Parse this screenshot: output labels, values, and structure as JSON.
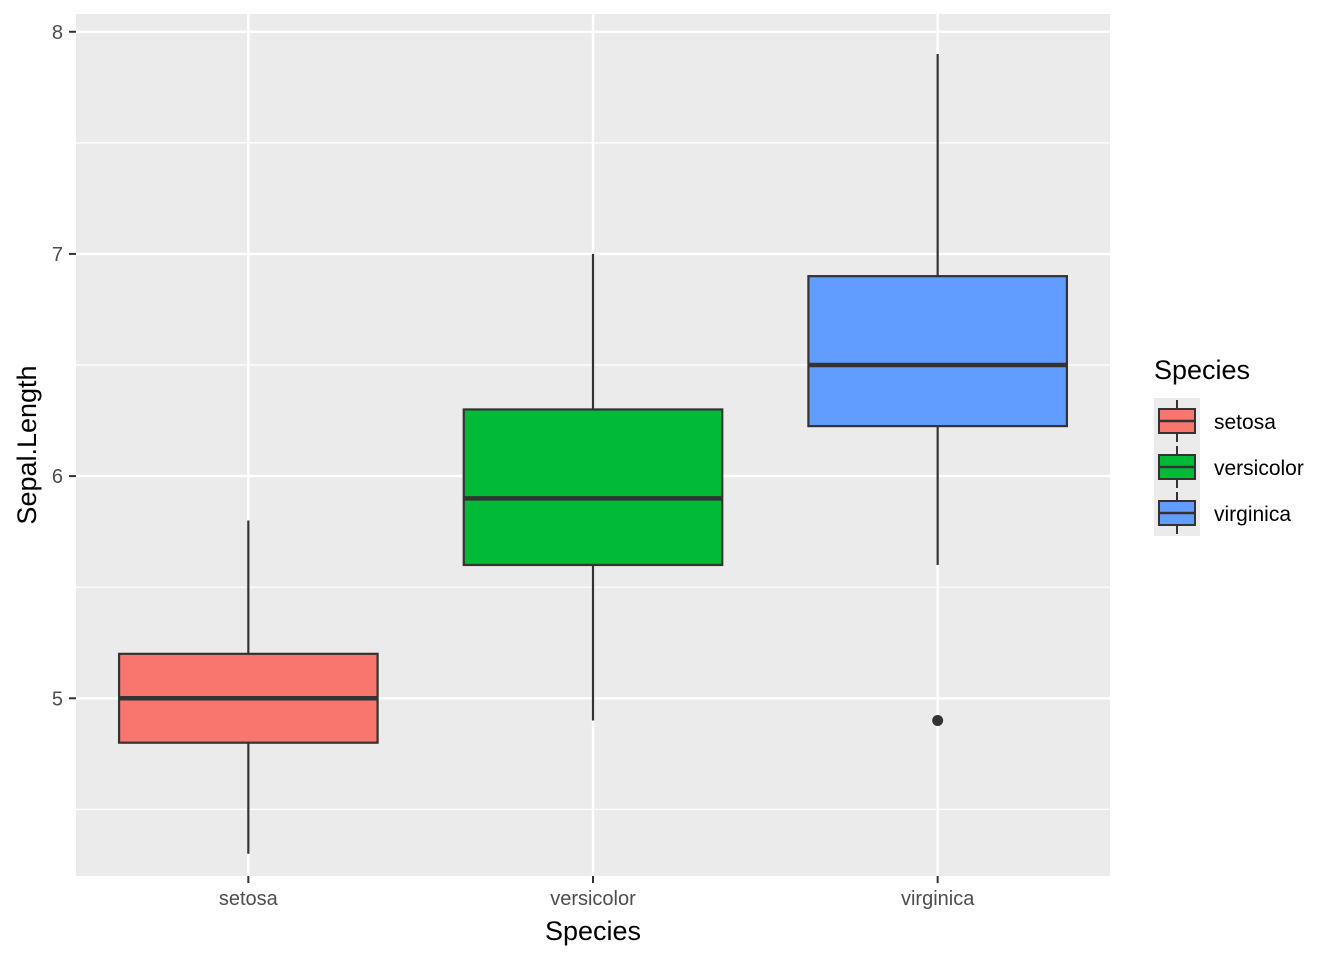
{
  "chart_data": {
    "type": "box",
    "xlabel": "Species",
    "ylabel": "Sepal.Length",
    "categories": [
      "setosa",
      "versicolor",
      "virginica"
    ],
    "ylim": [
      4.2,
      8.08
    ],
    "y_ticks": [
      5,
      6,
      7,
      8
    ],
    "y_tick_labels": [
      "5",
      "6",
      "7",
      "8"
    ],
    "y_minor_ticks": [
      4.5,
      5.5,
      6.5,
      7.5
    ],
    "grid": true,
    "boxes": [
      {
        "category": "setosa",
        "min": 4.3,
        "q1": 4.8,
        "median": 5.0,
        "q3": 5.2,
        "max": 5.8,
        "outliers": [],
        "color": "#F8766D"
      },
      {
        "category": "versicolor",
        "min": 4.9,
        "q1": 5.6,
        "median": 5.9,
        "q3": 6.3,
        "max": 7.0,
        "outliers": [],
        "color": "#00BA38"
      },
      {
        "category": "virginica",
        "min": 5.6,
        "q1": 6.225,
        "median": 6.5,
        "q3": 6.9,
        "max": 7.9,
        "outliers": [
          4.9
        ],
        "color": "#619CFF"
      }
    ],
    "legend": {
      "title": "Species",
      "position": "right",
      "entries": [
        {
          "label": "setosa",
          "color": "#F8766D"
        },
        {
          "label": "versicolor",
          "color": "#00BA38"
        },
        {
          "label": "virginica",
          "color": "#619CFF"
        }
      ]
    },
    "colors": {
      "panel_background": "#EBEBEB",
      "grid": "#FFFFFF",
      "outline": "#333333"
    }
  }
}
